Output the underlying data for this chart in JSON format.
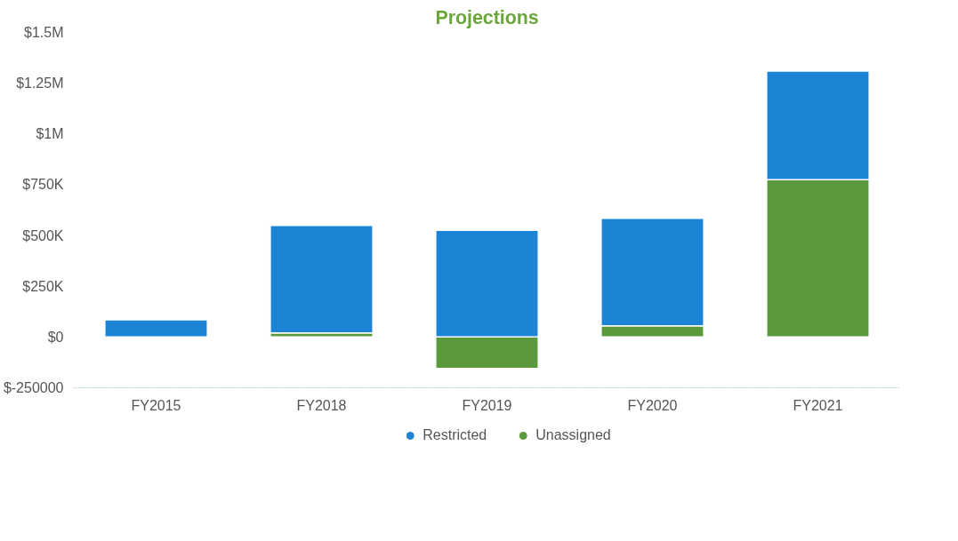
{
  "chart_data": {
    "type": "bar",
    "title": "Projections",
    "stacked": true,
    "categories": [
      "FY2015",
      "FY2018",
      "FY2019",
      "FY2020",
      "FY2021"
    ],
    "series": [
      {
        "name": "Unassigned",
        "color": "#5b9a3c",
        "values": [
          0,
          20000,
          -155000,
          55000,
          775000
        ]
      },
      {
        "name": "Restricted",
        "color": "#1b84d4",
        "values": [
          85000,
          530000,
          525000,
          530000,
          535000
        ]
      }
    ],
    "ylim": [
      -250000,
      1500000
    ],
    "yticks": [
      {
        "value": -250000,
        "label": "$-250000"
      },
      {
        "value": 0,
        "label": "$0"
      },
      {
        "value": 250000,
        "label": "$250K"
      },
      {
        "value": 500000,
        "label": "$500K"
      },
      {
        "value": 750000,
        "label": "$750K"
      },
      {
        "value": 1000000,
        "label": "$1M"
      },
      {
        "value": 1250000,
        "label": "$1.25M"
      },
      {
        "value": 1500000,
        "label": "$1.5M"
      }
    ],
    "grid": false,
    "legend": "bottom"
  }
}
